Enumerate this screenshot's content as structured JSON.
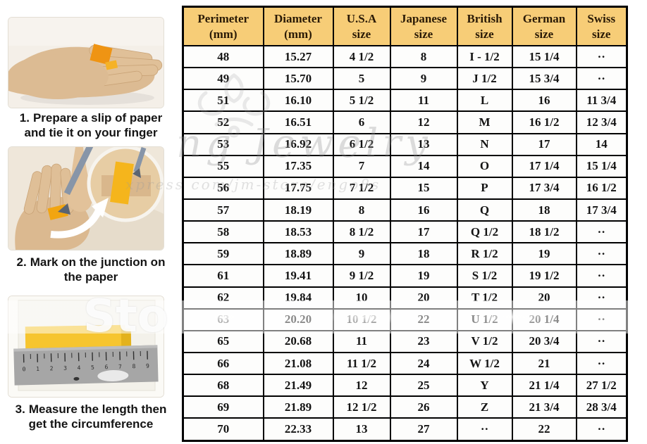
{
  "instructions": {
    "steps": [
      {
        "number": "1.",
        "line1": "Prepare a slip of paper",
        "line2": "and tie it on your finger"
      },
      {
        "number": "2.",
        "line1": "Mark on the junction on",
        "line2": "the paper"
      },
      {
        "number": "3.",
        "line1": "Measure the length then",
        "line2": "get the circumference"
      }
    ],
    "ruler_numbers": [
      "0",
      "1",
      "2",
      "3",
      "4",
      "5",
      "6",
      "7",
      "8",
      "9"
    ]
  },
  "table": {
    "headers": [
      {
        "line1": "Perimeter",
        "line2": "(mm)"
      },
      {
        "line1": "Diameter",
        "line2": "(mm)"
      },
      {
        "line1": "U.S.A",
        "line2": "size"
      },
      {
        "line1": "Japanese",
        "line2": "size"
      },
      {
        "line1": "British",
        "line2": "size"
      },
      {
        "line1": "German",
        "line2": "size"
      },
      {
        "line1": "Swiss",
        "line2": "size"
      }
    ],
    "rows": [
      [
        "48",
        "15.27",
        "4 1/2",
        "8",
        "I - 1/2",
        "15 1/4",
        "··"
      ],
      [
        "49",
        "15.70",
        "5",
        "9",
        "J 1/2",
        "15 3/4",
        "··"
      ],
      [
        "51",
        "16.10",
        "5 1/2",
        "11",
        "L",
        "16",
        "11 3/4"
      ],
      [
        "52",
        "16.51",
        "6",
        "12",
        "M",
        "16 1/2",
        "12 3/4"
      ],
      [
        "53",
        "16.92",
        "6 1/2",
        "13",
        "N",
        "17",
        "14"
      ],
      [
        "55",
        "17.35",
        "7",
        "14",
        "O",
        "17 1/4",
        "15 1/4"
      ],
      [
        "56",
        "17.75",
        "7 1/2",
        "15",
        "P",
        "17 3/4",
        "16 1/2"
      ],
      [
        "57",
        "18.19",
        "8",
        "16",
        "Q",
        "18",
        "17 3/4"
      ],
      [
        "58",
        "18.53",
        "8 1/2",
        "17",
        "Q 1/2",
        "18 1/2",
        "··"
      ],
      [
        "59",
        "18.89",
        "9",
        "18",
        "R 1/2",
        "19",
        "··"
      ],
      [
        "61",
        "19.41",
        "9 1/2",
        "19",
        "S 1/2",
        "19 1/2",
        "··"
      ],
      [
        "62",
        "19.84",
        "10",
        "20",
        "T 1/2",
        "20",
        "··"
      ],
      [
        "63",
        "20.20",
        "10 1/2",
        "22",
        "U 1/2",
        "20 1/4",
        "··"
      ],
      [
        "65",
        "20.68",
        "11",
        "23",
        "V 1/2",
        "20 3/4",
        "··"
      ],
      [
        "66",
        "21.08",
        "11 1/2",
        "24",
        "W 1/2",
        "21",
        "··"
      ],
      [
        "68",
        "21.49",
        "12",
        "25",
        "Y",
        "21 1/4",
        "27 1/2"
      ],
      [
        "69",
        "21.89",
        "12 1/2",
        "26",
        "Z",
        "21 3/4",
        "28 3/4"
      ],
      [
        "70",
        "22.33",
        "13",
        "27",
        "··",
        "22",
        "··"
      ]
    ]
  },
  "watermarks": {
    "script_text": "ng Jewelry",
    "url_text": "xpress com/jm-store/engo8s",
    "band_text": "Sto"
  },
  "colors": {
    "header_bg": "#f7cd77",
    "header_text": "#2a1a06",
    "table_border": "#000000",
    "cell_text": "#141414",
    "paper_orange": "#ef9413",
    "strip_yellow": "#f6c52f",
    "ruler_gray": "#a6a6a6"
  }
}
